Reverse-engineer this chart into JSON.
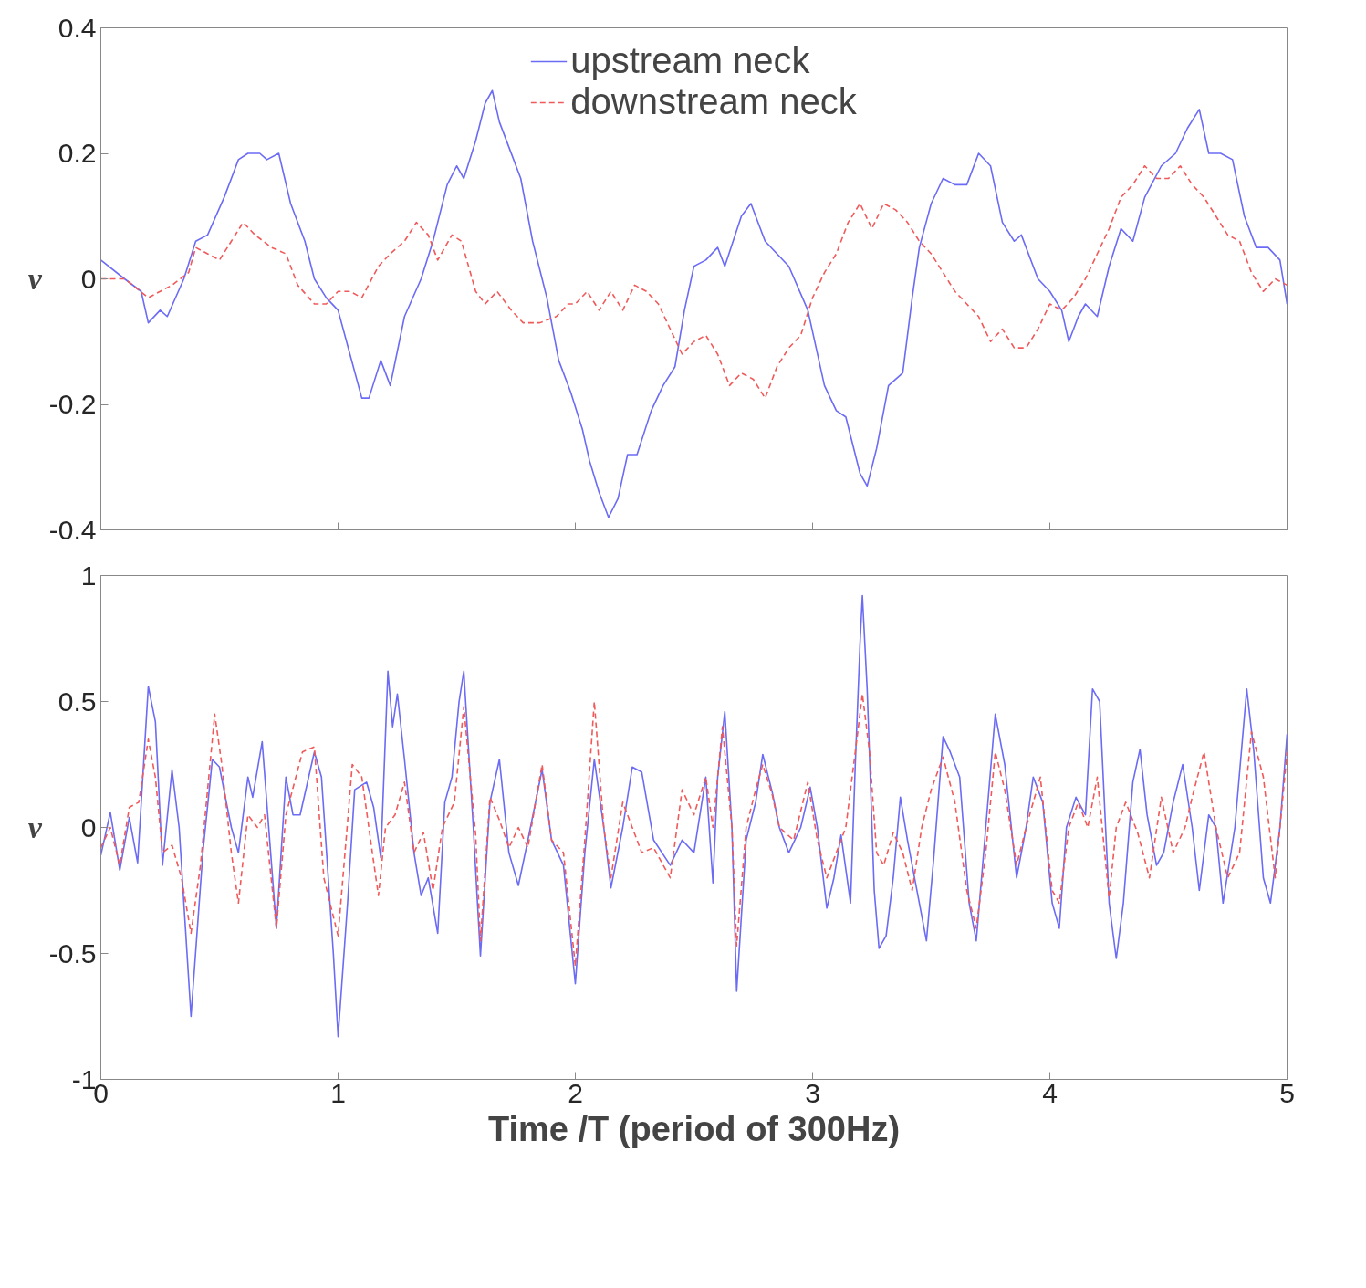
{
  "chart_data": [
    {
      "type": "line",
      "ylabel": "v",
      "xlim": [
        0,
        5
      ],
      "ylim": [
        -0.4,
        0.4
      ],
      "xticks": [
        0,
        1,
        2,
        3,
        4,
        5
      ],
      "yticks": [
        -0.4,
        -0.2,
        0,
        0.2,
        0.4
      ],
      "tick_labels": "y",
      "legend": "top",
      "series": [
        {
          "name": "upstream neck",
          "color": "#6b6bf5",
          "line_style": "solid",
          "x": [
            0,
            0.1,
            0.17,
            0.2,
            0.25,
            0.28,
            0.35,
            0.4,
            0.45,
            0.52,
            0.58,
            0.62,
            0.67,
            0.7,
            0.75,
            0.8,
            0.86,
            0.9,
            0.95,
            1.0,
            1.05,
            1.1,
            1.13,
            1.18,
            1.22,
            1.28,
            1.35,
            1.4,
            1.46,
            1.5,
            1.53,
            1.58,
            1.62,
            1.65,
            1.68,
            1.72,
            1.77,
            1.82,
            1.88,
            1.93,
            1.98,
            2.03,
            2.06,
            2.1,
            2.14,
            2.18,
            2.22,
            2.26,
            2.32,
            2.37,
            2.42,
            2.46,
            2.5,
            2.55,
            2.6,
            2.63,
            2.7,
            2.74,
            2.8,
            2.85,
            2.9,
            2.98,
            3.05,
            3.1,
            3.14,
            3.2,
            3.23,
            3.27,
            3.32,
            3.38,
            3.42,
            3.45,
            3.5,
            3.55,
            3.6,
            3.65,
            3.7,
            3.75,
            3.8,
            3.85,
            3.88,
            3.95,
            4.0,
            4.05,
            4.08,
            4.12,
            4.15,
            4.2,
            4.25,
            4.3,
            4.35,
            4.4,
            4.47,
            4.53,
            4.58,
            4.63,
            4.67,
            4.72,
            4.77,
            4.82,
            4.87,
            4.92,
            4.97,
            5.0
          ],
          "values": [
            0.03,
            0.0,
            -0.02,
            -0.07,
            -0.05,
            -0.06,
            0.0,
            0.06,
            0.07,
            0.13,
            0.19,
            0.2,
            0.2,
            0.19,
            0.2,
            0.12,
            0.06,
            0.0,
            -0.03,
            -0.05,
            -0.12,
            -0.19,
            -0.19,
            -0.13,
            -0.17,
            -0.06,
            0.0,
            0.06,
            0.15,
            0.18,
            0.16,
            0.22,
            0.28,
            0.3,
            0.25,
            0.21,
            0.16,
            0.06,
            -0.03,
            -0.13,
            -0.18,
            -0.24,
            -0.29,
            -0.34,
            -0.38,
            -0.35,
            -0.28,
            -0.28,
            -0.21,
            -0.17,
            -0.14,
            -0.05,
            0.02,
            0.03,
            0.05,
            0.02,
            0.1,
            0.12,
            0.06,
            0.04,
            0.02,
            -0.05,
            -0.17,
            -0.21,
            -0.22,
            -0.31,
            -0.33,
            -0.27,
            -0.17,
            -0.15,
            -0.03,
            0.05,
            0.12,
            0.16,
            0.15,
            0.15,
            0.2,
            0.18,
            0.09,
            0.06,
            0.07,
            0.0,
            -0.02,
            -0.05,
            -0.1,
            -0.06,
            -0.04,
            -0.06,
            0.02,
            0.08,
            0.06,
            0.13,
            0.18,
            0.2,
            0.24,
            0.27,
            0.2,
            0.2,
            0.19,
            0.1,
            0.05,
            0.05,
            0.03,
            -0.04
          ]
        },
        {
          "name": "downstream neck",
          "color": "#f05a5a",
          "line_style": "dashed",
          "x": [
            0,
            0.1,
            0.2,
            0.3,
            0.37,
            0.4,
            0.45,
            0.5,
            0.55,
            0.6,
            0.65,
            0.72,
            0.78,
            0.83,
            0.9,
            0.95,
            1.0,
            1.05,
            1.1,
            1.17,
            1.22,
            1.28,
            1.33,
            1.38,
            1.42,
            1.48,
            1.52,
            1.58,
            1.62,
            1.67,
            1.73,
            1.78,
            1.85,
            1.92,
            1.97,
            2.0,
            2.05,
            2.1,
            2.15,
            2.2,
            2.25,
            2.3,
            2.35,
            2.4,
            2.45,
            2.5,
            2.55,
            2.6,
            2.65,
            2.7,
            2.75,
            2.8,
            2.85,
            2.9,
            2.95,
            3.0,
            3.05,
            3.1,
            3.15,
            3.2,
            3.25,
            3.3,
            3.35,
            3.4,
            3.45,
            3.5,
            3.55,
            3.6,
            3.65,
            3.7,
            3.75,
            3.8,
            3.85,
            3.9,
            3.95,
            4.0,
            4.05,
            4.1,
            4.15,
            4.2,
            4.25,
            4.3,
            4.35,
            4.4,
            4.45,
            4.5,
            4.55,
            4.6,
            4.65,
            4.7,
            4.75,
            4.8,
            4.85,
            4.9,
            4.95,
            5.0
          ],
          "values": [
            0.0,
            0.0,
            -0.03,
            -0.01,
            0.01,
            0.05,
            0.04,
            0.03,
            0.06,
            0.09,
            0.07,
            0.05,
            0.04,
            -0.01,
            -0.04,
            -0.04,
            -0.02,
            -0.02,
            -0.03,
            0.02,
            0.04,
            0.06,
            0.09,
            0.07,
            0.03,
            0.07,
            0.06,
            -0.02,
            -0.04,
            -0.02,
            -0.05,
            -0.07,
            -0.07,
            -0.06,
            -0.04,
            -0.04,
            -0.02,
            -0.05,
            -0.02,
            -0.05,
            -0.01,
            -0.02,
            -0.04,
            -0.08,
            -0.12,
            -0.1,
            -0.09,
            -0.12,
            -0.17,
            -0.15,
            -0.16,
            -0.19,
            -0.14,
            -0.11,
            -0.09,
            -0.03,
            0.01,
            0.04,
            0.09,
            0.12,
            0.08,
            0.12,
            0.11,
            0.09,
            0.06,
            0.04,
            0.01,
            -0.02,
            -0.04,
            -0.06,
            -0.1,
            -0.08,
            -0.11,
            -0.11,
            -0.08,
            -0.04,
            -0.05,
            -0.03,
            0.0,
            0.04,
            0.08,
            0.13,
            0.15,
            0.18,
            0.16,
            0.16,
            0.18,
            0.15,
            0.13,
            0.1,
            0.07,
            0.06,
            0.01,
            -0.02,
            0.0,
            -0.01
          ]
        }
      ]
    },
    {
      "type": "line",
      "ylabel": "v",
      "xlabel": "Time /T (period of 300Hz)",
      "xlim": [
        0,
        5
      ],
      "ylim": [
        -1,
        1
      ],
      "xticks": [
        0,
        1,
        2,
        3,
        4,
        5
      ],
      "yticks": [
        -1,
        -0.5,
        0,
        0.5,
        1
      ],
      "series": [
        {
          "color": "#6b6bf5",
          "line_style": "solid",
          "x": [
            0,
            0.04,
            0.08,
            0.12,
            0.155,
            0.2,
            0.23,
            0.26,
            0.3,
            0.33,
            0.38,
            0.43,
            0.47,
            0.5,
            0.55,
            0.58,
            0.62,
            0.64,
            0.68,
            0.74,
            0.78,
            0.81,
            0.84,
            0.9,
            0.93,
            0.98,
            1.0,
            1.04,
            1.07,
            1.12,
            1.15,
            1.18,
            1.21,
            1.23,
            1.25,
            1.28,
            1.32,
            1.35,
            1.38,
            1.42,
            1.45,
            1.48,
            1.51,
            1.53,
            1.57,
            1.6,
            1.64,
            1.68,
            1.72,
            1.76,
            1.8,
            1.86,
            1.9,
            1.95,
            2.0,
            2.04,
            2.08,
            2.12,
            2.15,
            2.2,
            2.24,
            2.28,
            2.33,
            2.4,
            2.45,
            2.5,
            2.55,
            2.58,
            2.6,
            2.63,
            2.66,
            2.68,
            2.72,
            2.76,
            2.79,
            2.83,
            2.86,
            2.9,
            2.95,
            2.99,
            3.02,
            3.06,
            3.09,
            3.12,
            3.16,
            3.18,
            3.2,
            3.21,
            3.23,
            3.26,
            3.28,
            3.31,
            3.34,
            3.37,
            3.4,
            3.45,
            3.48,
            3.51,
            3.55,
            3.58,
            3.62,
            3.66,
            3.69,
            3.73,
            3.77,
            3.81,
            3.86,
            3.9,
            3.93,
            3.97,
            4.01,
            4.04,
            4.07,
            4.11,
            4.15,
            4.18,
            4.21,
            4.25,
            4.28,
            4.31,
            4.35,
            4.38,
            4.41,
            4.45,
            4.48,
            4.52,
            4.56,
            4.6,
            4.63,
            4.67,
            4.7,
            4.73,
            4.78,
            4.83,
            4.86,
            4.9,
            4.93,
            4.97,
            5.0
          ],
          "values": [
            -0.11,
            0.06,
            -0.17,
            0.04,
            -0.14,
            0.56,
            0.42,
            -0.15,
            0.23,
            0.0,
            -0.75,
            -0.1,
            0.27,
            0.24,
            0.0,
            -0.1,
            0.2,
            0.12,
            0.34,
            -0.4,
            0.2,
            0.05,
            0.05,
            0.3,
            0.2,
            -0.5,
            -0.83,
            -0.3,
            0.15,
            0.18,
            0.08,
            -0.12,
            0.62,
            0.4,
            0.53,
            0.27,
            -0.1,
            -0.27,
            -0.2,
            -0.42,
            0.1,
            0.2,
            0.5,
            0.62,
            0.0,
            -0.51,
            0.1,
            0.27,
            -0.1,
            -0.23,
            -0.05,
            0.23,
            -0.05,
            -0.15,
            -0.62,
            -0.1,
            0.27,
            0.0,
            -0.24,
            0.0,
            0.24,
            0.22,
            -0.05,
            -0.15,
            -0.05,
            -0.1,
            0.2,
            -0.22,
            0.2,
            0.46,
            0.0,
            -0.65,
            -0.05,
            0.1,
            0.29,
            0.14,
            0.0,
            -0.1,
            0.0,
            0.16,
            0.0,
            -0.32,
            -0.2,
            -0.03,
            -0.3,
            0.25,
            0.73,
            0.92,
            0.55,
            -0.25,
            -0.48,
            -0.43,
            -0.2,
            0.12,
            -0.05,
            -0.3,
            -0.45,
            -0.13,
            0.36,
            0.3,
            0.2,
            -0.3,
            -0.45,
            0.0,
            0.45,
            0.25,
            -0.2,
            0.0,
            0.2,
            0.1,
            -0.3,
            -0.4,
            0.0,
            0.12,
            0.05,
            0.55,
            0.5,
            -0.3,
            -0.52,
            -0.3,
            0.18,
            0.31,
            0.05,
            -0.15,
            -0.1,
            0.1,
            0.25,
            0.0,
            -0.25,
            0.05,
            0.0,
            -0.3,
            0.0,
            0.55,
            0.3,
            -0.2,
            -0.3,
            0.0,
            0.37
          ]
        },
        {
          "color": "#f05a5a",
          "line_style": "dashed",
          "x": [
            0,
            0.04,
            0.08,
            0.12,
            0.16,
            0.2,
            0.23,
            0.26,
            0.3,
            0.34,
            0.38,
            0.42,
            0.48,
            0.51,
            0.55,
            0.58,
            0.62,
            0.66,
            0.69,
            0.74,
            0.78,
            0.85,
            0.9,
            0.94,
            1.0,
            1.06,
            1.1,
            1.14,
            1.17,
            1.2,
            1.24,
            1.28,
            1.32,
            1.36,
            1.4,
            1.44,
            1.49,
            1.53,
            1.58,
            1.6,
            1.64,
            1.68,
            1.72,
            1.76,
            1.8,
            1.86,
            1.9,
            1.95,
            2.0,
            2.04,
            2.08,
            2.12,
            2.15,
            2.2,
            2.24,
            2.28,
            2.33,
            2.4,
            2.45,
            2.5,
            2.55,
            2.58,
            2.62,
            2.66,
            2.68,
            2.72,
            2.76,
            2.79,
            2.83,
            2.86,
            2.92,
            2.98,
            3.02,
            3.06,
            3.1,
            3.14,
            3.18,
            3.21,
            3.24,
            3.27,
            3.3,
            3.34,
            3.38,
            3.42,
            3.46,
            3.5,
            3.55,
            3.6,
            3.65,
            3.69,
            3.73,
            3.77,
            3.81,
            3.86,
            3.9,
            3.96,
            4.01,
            4.04,
            4.08,
            4.12,
            4.16,
            4.2,
            4.25,
            4.28,
            4.32,
            4.37,
            4.42,
            4.47,
            4.52,
            4.57,
            4.6,
            4.65,
            4.7,
            4.75,
            4.8,
            4.85,
            4.9,
            4.95,
            5.0
          ],
          "values": [
            -0.08,
            0.0,
            -0.15,
            0.08,
            0.1,
            0.35,
            0.2,
            -0.1,
            -0.07,
            -0.2,
            -0.42,
            -0.15,
            0.45,
            0.25,
            -0.1,
            -0.3,
            0.05,
            0.0,
            0.05,
            -0.4,
            0.05,
            0.3,
            0.32,
            -0.2,
            -0.43,
            0.25,
            0.2,
            -0.07,
            -0.27,
            0.0,
            0.05,
            0.18,
            -0.1,
            -0.02,
            -0.25,
            0.0,
            0.1,
            0.48,
            -0.03,
            -0.45,
            0.12,
            0.03,
            -0.08,
            0.0,
            -0.08,
            0.25,
            -0.05,
            -0.1,
            -0.55,
            -0.05,
            0.5,
            0.0,
            -0.2,
            0.1,
            0.0,
            -0.1,
            -0.08,
            -0.2,
            0.15,
            0.05,
            0.2,
            0.0,
            0.4,
            0.0,
            -0.47,
            0.0,
            0.15,
            0.25,
            0.13,
            0.0,
            -0.05,
            0.18,
            -0.05,
            -0.2,
            -0.1,
            0.0,
            0.3,
            0.53,
            0.3,
            -0.1,
            -0.15,
            -0.02,
            -0.1,
            -0.25,
            0.0,
            0.15,
            0.28,
            0.1,
            -0.25,
            -0.4,
            -0.1,
            0.3,
            0.15,
            -0.15,
            0.0,
            0.2,
            -0.25,
            -0.3,
            0.0,
            0.1,
            0.0,
            0.2,
            -0.28,
            0.0,
            0.1,
            -0.02,
            -0.2,
            0.12,
            -0.1,
            0.0,
            0.12,
            0.3,
            0.0,
            -0.2,
            -0.1,
            0.38,
            0.2,
            -0.2,
            0.3
          ]
        }
      ]
    }
  ]
}
